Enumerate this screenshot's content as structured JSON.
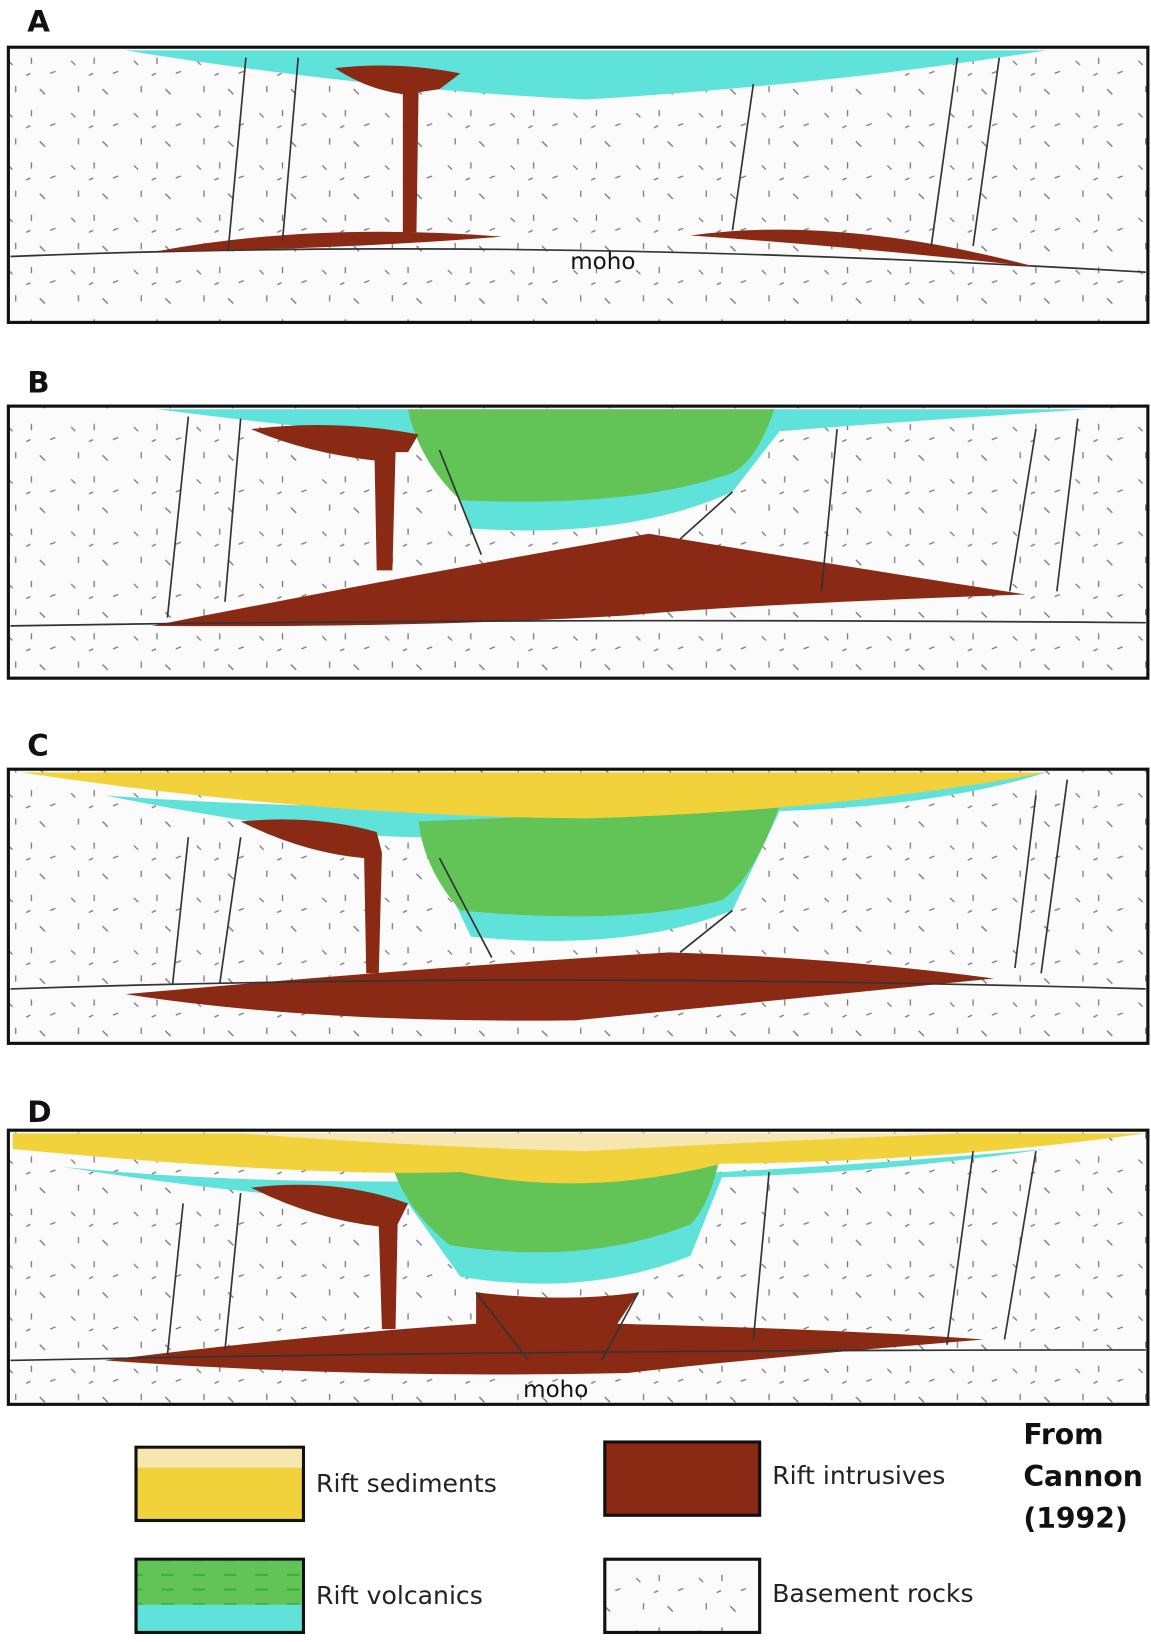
{
  "panels": [
    {
      "label": "A",
      "annotations": [
        "moho"
      ]
    },
    {
      "label": "B"
    },
    {
      "label": "C"
    },
    {
      "label": "D",
      "annotations": [
        "moho"
      ]
    }
  ],
  "legend": [
    "Rift sediments",
    "Rift intrusives",
    "Rift volcanics",
    "Basement rocks"
  ],
  "credit": [
    "From",
    "Cannon",
    "(1992)"
  ]
}
